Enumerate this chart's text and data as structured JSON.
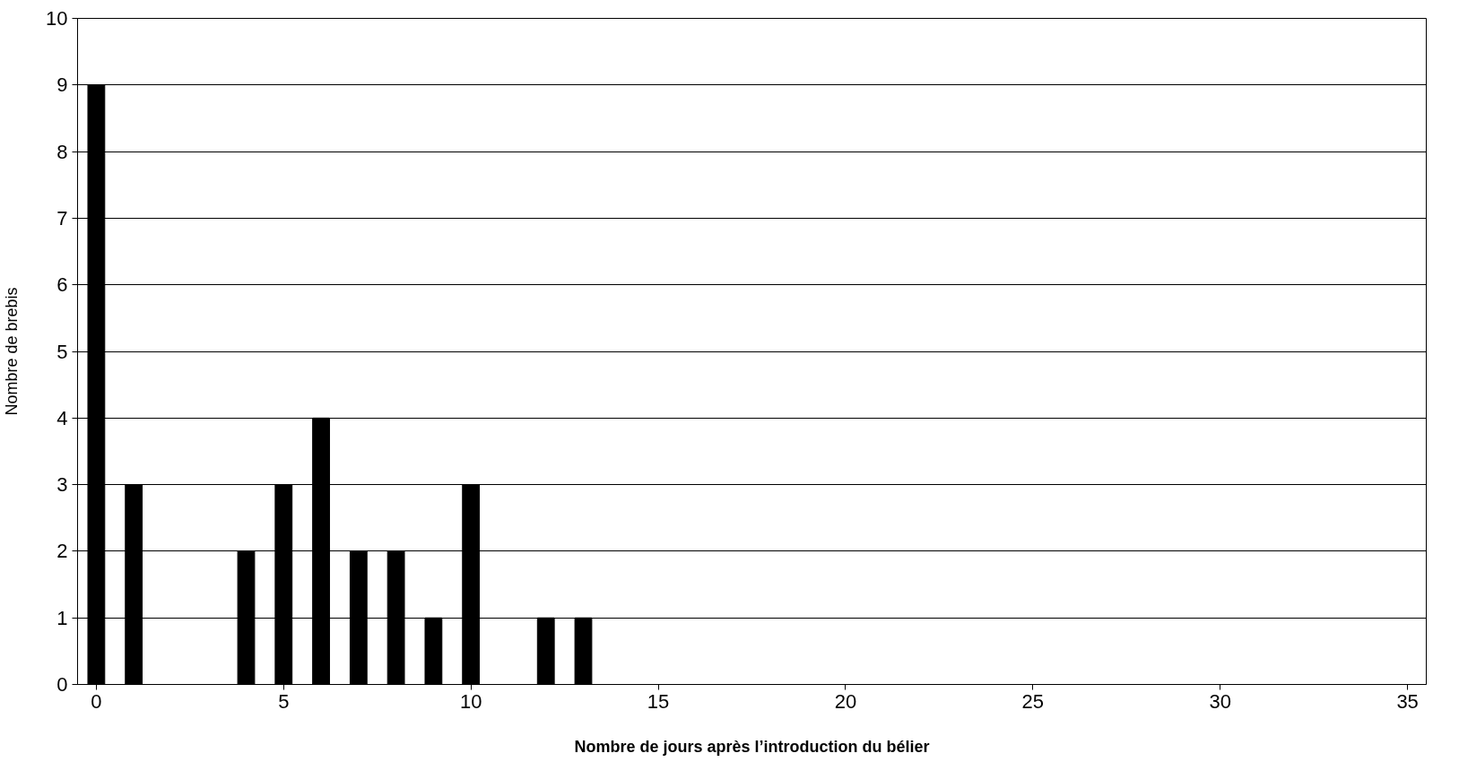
{
  "chart_data": {
    "type": "bar",
    "xlabel": "Nombre de jours après l’introduction du bélier",
    "ylabel": "Nombre de brebis",
    "x": [
      0,
      1,
      2,
      3,
      4,
      5,
      6,
      7,
      8,
      9,
      10,
      11,
      12,
      13,
      14,
      15,
      16,
      17,
      18,
      19,
      20,
      21,
      22,
      23,
      24,
      25,
      26,
      27,
      28,
      29,
      30,
      31,
      32,
      33,
      34,
      35
    ],
    "values": [
      9,
      3,
      0,
      0,
      2,
      3,
      4,
      2,
      2,
      1,
      3,
      0,
      1,
      1,
      0,
      0,
      0,
      0,
      0,
      0,
      0,
      0,
      0,
      0,
      0,
      0,
      0,
      0,
      0,
      0,
      0,
      0,
      0,
      0,
      0,
      0
    ],
    "color": "#000000",
    "xlim": [
      -0.5,
      35.5
    ],
    "xticks": [
      0,
      5,
      10,
      15,
      20,
      25,
      30,
      35
    ],
    "ylim": [
      0,
      10
    ],
    "yticks": [
      0,
      1,
      2,
      3,
      4,
      5,
      6,
      7,
      8,
      9,
      10
    ],
    "grid": "y"
  }
}
